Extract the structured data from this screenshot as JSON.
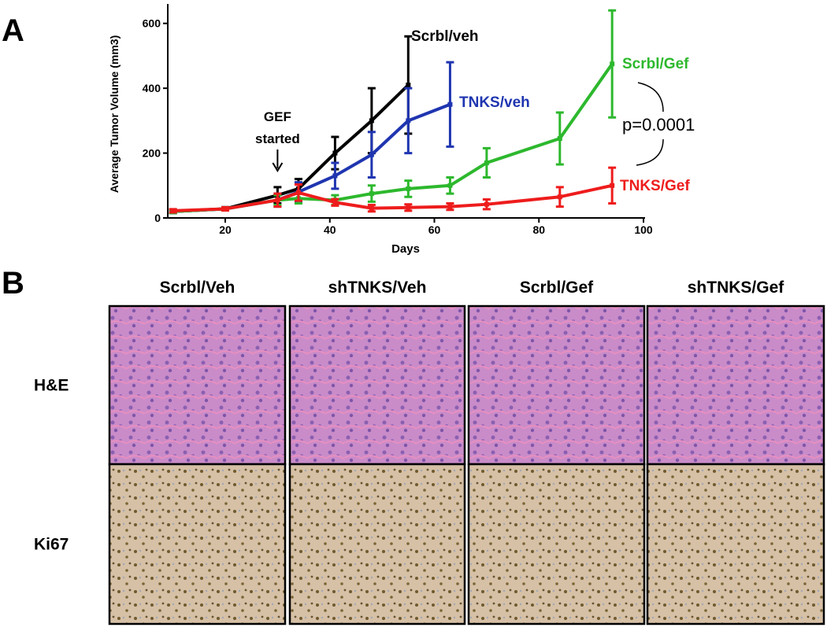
{
  "panel_labels": [
    "A",
    "B"
  ],
  "chart_data": {
    "type": "line",
    "x_label": "Days",
    "y_label": "Average Tumor  Volume (mm3)",
    "xlim": [
      9,
      100
    ],
    "xticks": [
      20,
      40,
      60,
      80,
      100
    ],
    "ylim": [
      0,
      660
    ],
    "yticks": [
      0,
      200,
      400,
      600
    ],
    "series": [
      {
        "name": "Scrbl/veh",
        "color": "#000000",
        "x": [
          10,
          20,
          30,
          34,
          41,
          48,
          55
        ],
        "values": [
          20,
          28,
          70,
          90,
          200,
          300,
          410
        ],
        "errors": [
          5,
          5,
          25,
          30,
          50,
          100,
          150
        ]
      },
      {
        "name": "TNKS/veh",
        "color": "#1f35b0",
        "x": [
          10,
          20,
          30,
          34,
          41,
          48,
          55,
          63
        ],
        "values": [
          20,
          28,
          55,
          80,
          130,
          195,
          300,
          350
        ],
        "errors": [
          5,
          5,
          20,
          30,
          40,
          70,
          100,
          130
        ]
      },
      {
        "name": "Scrbl/Gef",
        "color": "#2db82d",
        "x": [
          10,
          20,
          30,
          34,
          41,
          48,
          55,
          63,
          70,
          84,
          94
        ],
        "values": [
          20,
          28,
          55,
          60,
          55,
          75,
          90,
          100,
          170,
          245,
          475
        ],
        "errors": [
          5,
          5,
          15,
          15,
          15,
          25,
          25,
          25,
          45,
          80,
          165
        ]
      },
      {
        "name": "TNKS/Gef",
        "color": "#ee1c1c",
        "x": [
          10,
          20,
          30,
          34,
          41,
          48,
          55,
          63,
          70,
          84,
          94
        ],
        "values": [
          22,
          28,
          55,
          78,
          48,
          30,
          32,
          35,
          42,
          65,
          100
        ],
        "errors": [
          5,
          5,
          20,
          25,
          10,
          10,
          10,
          10,
          15,
          30,
          55
        ]
      }
    ],
    "annotations": [
      {
        "lines": [
          "GEF",
          "started"
        ],
        "x": 30
      },
      {
        "text": "p=0.0001"
      }
    ]
  },
  "panel_b": {
    "columns": [
      "Scrbl/Veh",
      "shTNKS/Veh",
      "Scrbl/Gef",
      "shTNKS/Gef"
    ],
    "rows": [
      "H&E",
      "Ki67"
    ]
  }
}
